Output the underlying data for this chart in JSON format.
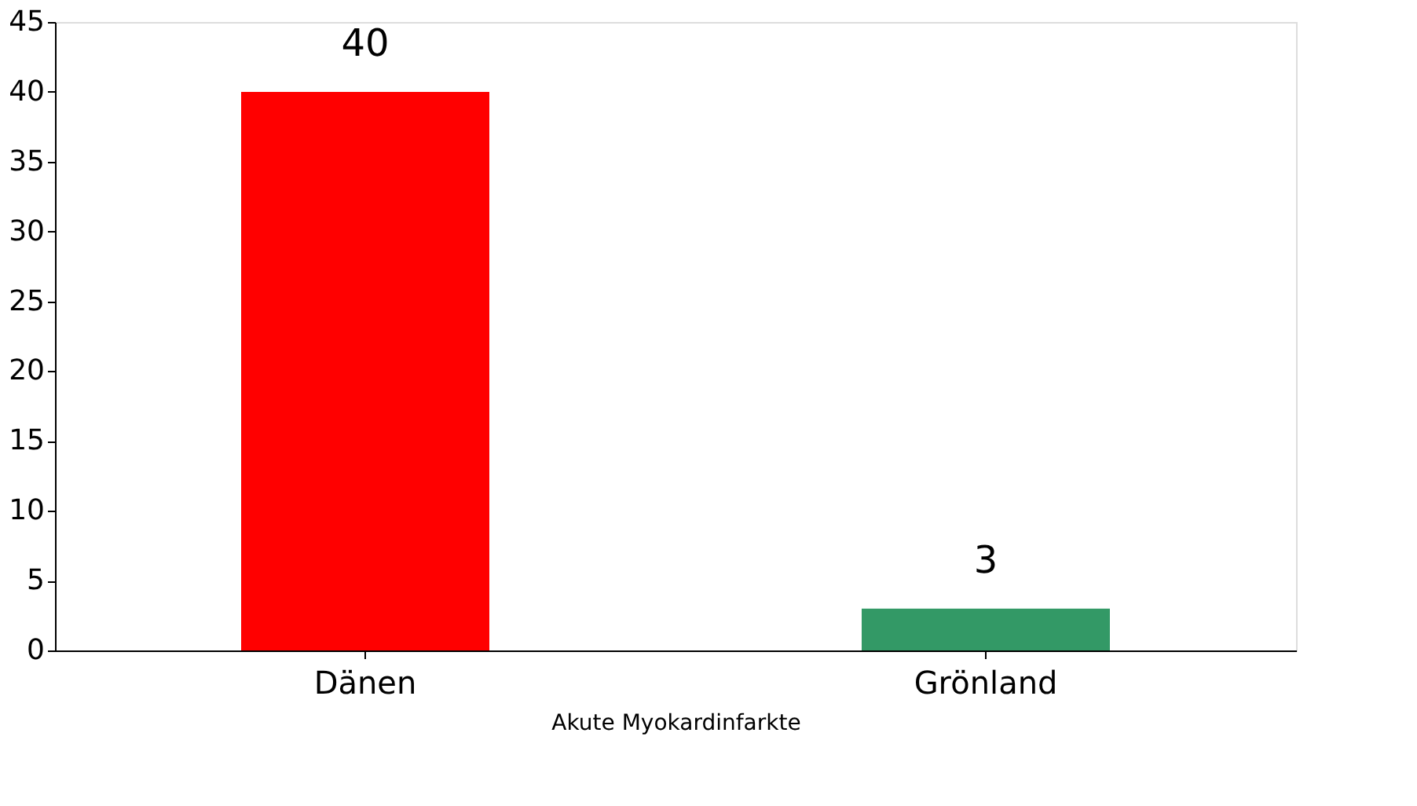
{
  "chart_data": {
    "type": "bar",
    "xlabel": "Akute Myokardinfarkte",
    "categories": [
      "Dänen",
      "Grönland"
    ],
    "values": [
      40,
      3
    ],
    "colors": [
      "#ff0000",
      "#339966"
    ],
    "ylim": [
      0,
      45
    ],
    "yticks": [
      0,
      5,
      10,
      15,
      20,
      25,
      30,
      35,
      40,
      45
    ],
    "grid": false,
    "data_labels": true
  }
}
